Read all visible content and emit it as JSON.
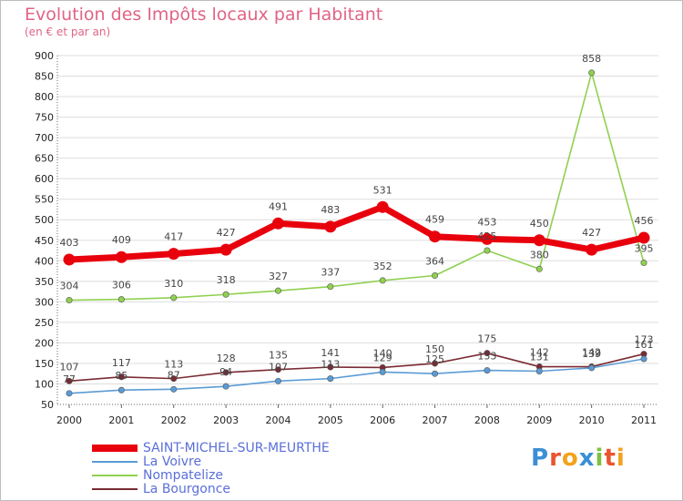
{
  "header": {
    "title": "Evolution des Impôts locaux par Habitant",
    "subtitle": "(en € et par an)"
  },
  "logo": {
    "text": "Proxiti",
    "letters": [
      "P",
      "r",
      "o",
      "x",
      "i",
      "t",
      "i"
    ],
    "colors": [
      "#3a8fd6",
      "#e8552f",
      "#f2a21c",
      "#3a8fd6",
      "#7cc143",
      "#e8552f",
      "#f2a21c"
    ]
  },
  "chart_data": {
    "type": "line",
    "title": "Evolution des Impôts locaux par Habitant",
    "subtitle": "(en € et par an)",
    "xlabel": "",
    "ylabel": "",
    "x": [
      "2000",
      "2001",
      "2002",
      "2003",
      "2004",
      "2005",
      "2006",
      "2007",
      "2008",
      "2009",
      "2010",
      "2011"
    ],
    "ylim": [
      50,
      900
    ],
    "yticks": [
      50,
      100,
      150,
      200,
      250,
      300,
      350,
      400,
      450,
      500,
      550,
      600,
      650,
      700,
      750,
      800,
      850,
      900
    ],
    "grid": "horizontal",
    "legend_position": "bottom-left",
    "series": [
      {
        "name": "SAINT-MICHEL-SUR-MEURTHE",
        "color": "#e8000d",
        "values": [
          403,
          409,
          417,
          427,
          491,
          483,
          531,
          459,
          453,
          450,
          427,
          456
        ],
        "labels": [
          "403",
          "409",
          "417",
          "427",
          "491",
          "483",
          "531",
          "459",
          "453",
          "450",
          "427",
          "456"
        ]
      },
      {
        "name": "La Voivre",
        "color": "#5b9bd5",
        "values": [
          77,
          85,
          87,
          94,
          107,
          113,
          129,
          125,
          133,
          131,
          139,
          161
        ],
        "labels": [
          "77",
          "85",
          "87",
          "94",
          "107",
          "113",
          "129",
          "125",
          "133",
          "131",
          "139",
          "161"
        ]
      },
      {
        "name": "Nompatelize",
        "color": "#90d050",
        "values": [
          304,
          306,
          310,
          318,
          327,
          337,
          352,
          364,
          425,
          380,
          858,
          395
        ],
        "labels": [
          "304",
          "306",
          "310",
          "318",
          "327",
          "337",
          "352",
          "364",
          "425",
          "380",
          "858",
          "395"
        ]
      },
      {
        "name": "La Bourgonce",
        "color": "#7a2b33",
        "values": [
          107,
          117,
          113,
          128,
          135,
          141,
          140,
          150,
          175,
          142,
          142,
          173
        ],
        "labels": [
          "107",
          "117",
          "113",
          "128",
          "135",
          "141",
          "140",
          "150",
          "175",
          "142",
          "142",
          "173"
        ]
      }
    ]
  }
}
